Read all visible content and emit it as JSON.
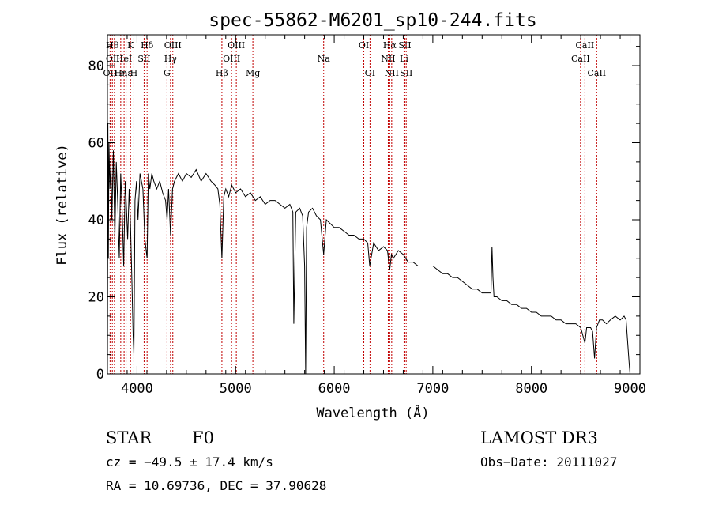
{
  "chart_data": {
    "type": "line",
    "title": "spec-55862-M6201_sp10-244.fits",
    "xlabel": "Wavelength (Å)",
    "ylabel": "Flux (relative)",
    "xlim": [
      3700,
      9100
    ],
    "ylim": [
      0,
      88
    ],
    "xticks": [
      4000,
      5000,
      6000,
      7000,
      8000,
      9000
    ],
    "xtick_labels": [
      "4000",
      "5000",
      "6000",
      "7000",
      "8000",
      "9000"
    ],
    "yticks": [
      0,
      20,
      40,
      60,
      80
    ],
    "ytick_labels": [
      "0",
      "20",
      "40",
      "60",
      "80"
    ],
    "grid": false,
    "line_color": "#000000",
    "marker_color": "#c00000",
    "series": [
      {
        "name": "spectrum",
        "x": [
          3700,
          3705,
          3710,
          3715,
          3725,
          3735,
          3745,
          3760,
          3775,
          3790,
          3805,
          3820,
          3835,
          3850,
          3865,
          3880,
          3890,
          3905,
          3920,
          3935,
          3950,
          3960,
          3968,
          3980,
          3995,
          4010,
          4030,
          4060,
          4080,
          4102,
          4115,
          4130,
          4150,
          4170,
          4200,
          4230,
          4260,
          4290,
          4305,
          4320,
          4340,
          4360,
          4380,
          4420,
          4460,
          4500,
          4550,
          4600,
          4650,
          4700,
          4750,
          4790,
          4820,
          4840,
          4861,
          4880,
          4900,
          4930,
          4960,
          5000,
          5050,
          5100,
          5150,
          5200,
          5250,
          5300,
          5350,
          5400,
          5450,
          5500,
          5550,
          5580,
          5590,
          5610,
          5650,
          5680,
          5700,
          5710,
          5720,
          5740,
          5780,
          5820,
          5860,
          5893,
          5920,
          5960,
          6000,
          6050,
          6100,
          6150,
          6200,
          6250,
          6300,
          6340,
          6360,
          6400,
          6450,
          6500,
          6540,
          6563,
          6580,
          6600,
          6650,
          6700,
          6750,
          6800,
          6850,
          6900,
          6950,
          7000,
          7050,
          7100,
          7150,
          7200,
          7250,
          7300,
          7350,
          7400,
          7450,
          7500,
          7550,
          7590,
          7600,
          7610,
          7620,
          7650,
          7700,
          7750,
          7800,
          7850,
          7900,
          7950,
          8000,
          8050,
          8100,
          8150,
          8200,
          8250,
          8300,
          8350,
          8400,
          8450,
          8500,
          8542,
          8560,
          8600,
          8620,
          8640,
          8660,
          8690,
          8720,
          8760,
          8800,
          8850,
          8900,
          8940,
          8960,
          8990,
          9000
        ],
        "y": [
          0,
          65,
          30,
          60,
          48,
          55,
          40,
          58,
          35,
          55,
          44,
          30,
          52,
          42,
          28,
          50,
          45,
          35,
          48,
          38,
          22,
          10,
          5,
          45,
          50,
          40,
          52,
          48,
          35,
          30,
          52,
          48,
          52,
          50,
          48,
          50,
          47,
          45,
          40,
          48,
          36,
          48,
          50,
          52,
          50,
          52,
          51,
          53,
          50,
          52,
          50,
          49,
          48,
          44,
          30,
          46,
          48,
          46,
          49,
          47,
          48,
          46,
          47,
          45,
          46,
          44,
          45,
          45,
          44,
          43,
          44,
          42,
          13,
          42,
          43,
          41,
          28,
          0,
          38,
          42,
          43,
          41,
          40,
          31,
          40,
          39,
          38,
          38,
          37,
          36,
          36,
          35,
          35,
          34,
          28,
          34,
          32,
          33,
          32,
          27,
          31,
          30,
          32,
          31,
          29,
          29,
          28,
          28,
          28,
          28,
          27,
          26,
          26,
          25,
          25,
          24,
          23,
          22,
          22,
          21,
          21,
          21,
          33,
          25,
          20,
          20,
          19,
          19,
          18,
          18,
          17,
          17,
          16,
          16,
          15,
          15,
          15,
          14,
          14,
          13,
          13,
          13,
          12,
          8,
          12,
          12,
          11,
          4,
          12,
          14,
          14,
          13,
          14,
          15,
          14,
          15,
          14,
          3,
          0
        ]
      }
    ],
    "line_markers": [
      {
        "x": 3727,
        "labels": [
          "OII"
        ],
        "row": 2
      },
      {
        "x": 3750,
        "labels": [
          "Hθ"
        ],
        "row": 0
      },
      {
        "x": 3771,
        "labels": [
          "OIII"
        ],
        "row": 1
      },
      {
        "x": 3835,
        "labels": [
          "Hη"
        ],
        "row": 2
      },
      {
        "x": 3869,
        "labels": [
          "HeI"
        ],
        "row": 1
      },
      {
        "x": 3889,
        "labels": [
          "Hε"
        ],
        "row": 2
      },
      {
        "x": 3934,
        "labels": [
          "K"
        ],
        "row": 0
      },
      {
        "x": 3968,
        "labels": [
          "H"
        ],
        "row": 2
      },
      {
        "x": 4072,
        "labels": [
          "SII"
        ],
        "row": 1
      },
      {
        "x": 4102,
        "labels": [
          "Hδ"
        ],
        "row": 0
      },
      {
        "x": 4304,
        "labels": [
          "G"
        ],
        "row": 2
      },
      {
        "x": 4340,
        "labels": [
          "Hγ"
        ],
        "row": 1
      },
      {
        "x": 4363,
        "labels": [
          "OIII"
        ],
        "row": 0
      },
      {
        "x": 4861,
        "labels": [
          "Hβ"
        ],
        "row": 2
      },
      {
        "x": 4959,
        "labels": [
          "OIII"
        ],
        "row": 1
      },
      {
        "x": 5007,
        "labels": [
          "OIII"
        ],
        "row": 0
      },
      {
        "x": 5175,
        "labels": [
          "Mg"
        ],
        "row": 2
      },
      {
        "x": 5893,
        "labels": [
          "Na"
        ],
        "row": 1
      },
      {
        "x": 6300,
        "labels": [
          "OI"
        ],
        "row": 0
      },
      {
        "x": 6363,
        "labels": [
          "OI"
        ],
        "row": 2
      },
      {
        "x": 6548,
        "labels": [
          "NII"
        ],
        "row": 1
      },
      {
        "x": 6563,
        "labels": [
          "Hα"
        ],
        "row": 0
      },
      {
        "x": 6583,
        "labels": [
          "NII"
        ],
        "row": 2
      },
      {
        "x": 6708,
        "labels": [
          "Li"
        ],
        "row": 1
      },
      {
        "x": 6716,
        "labels": [
          "SII"
        ],
        "row": 0
      },
      {
        "x": 6730,
        "labels": [
          "SII"
        ],
        "row": 2
      },
      {
        "x": 8498,
        "labels": [
          "CaII"
        ],
        "row": 1
      },
      {
        "x": 8542,
        "labels": [
          "CaII"
        ],
        "row": 0
      },
      {
        "x": 8662,
        "labels": [
          "CaII"
        ],
        "row": 2
      }
    ]
  },
  "info": {
    "object_class": "STAR",
    "subclass": "F0",
    "survey": "LAMOST DR3",
    "redshift": "cz = −49.5 ± 17.4 km/s",
    "obs_date": "Obs−Date: 20111027",
    "coords": "RA =  10.69736, DEC =  37.90628"
  }
}
